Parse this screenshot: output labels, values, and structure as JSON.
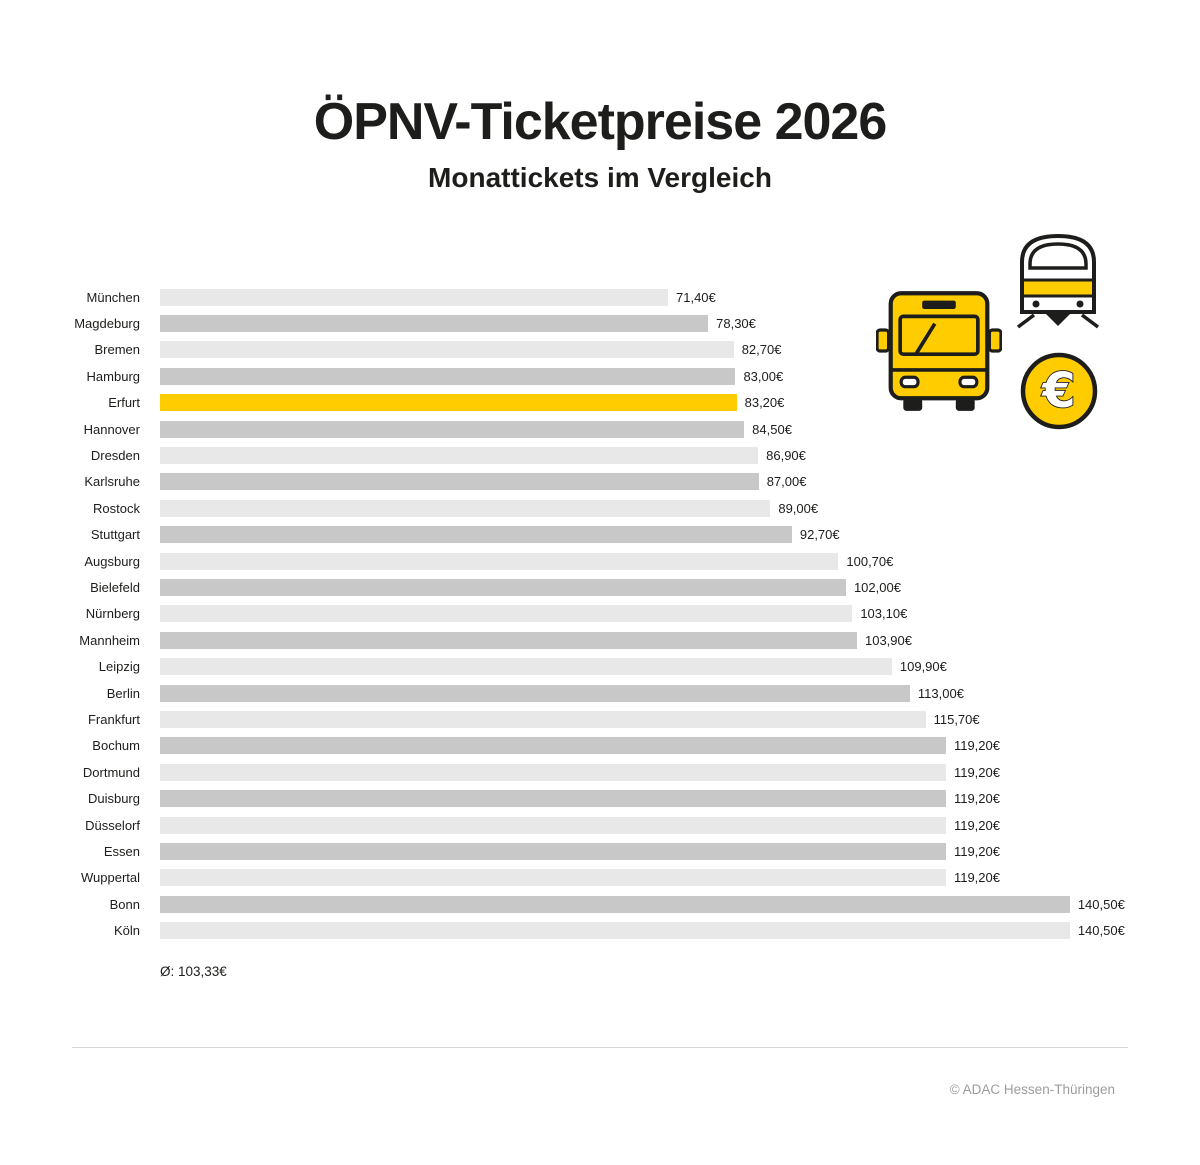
{
  "header": {
    "title": "ÖPNV-Ticketpreise 2026",
    "subtitle": "Monattickets im Vergleich"
  },
  "footer": {
    "credit": "© ADAC Hessen-Thüringen"
  },
  "colors": {
    "highlight": "#FFCC00",
    "bar_light": "#E9E8E8",
    "bar_dark": "#C9C8C8",
    "text": "#1D1D1B",
    "muted": "#9C9C9C"
  },
  "icons": [
    "bus-icon",
    "train-icon",
    "euro-coin-icon"
  ],
  "chart_data": {
    "type": "bar",
    "orientation": "horizontal",
    "title": "ÖPNV-Ticketpreise 2026",
    "subtitle": "Monattickets im Vergleich",
    "unit": "EUR/Monat",
    "grid": false,
    "legend": false,
    "xlim": [
      0,
      140.5
    ],
    "categories": [
      "München",
      "Magdeburg",
      "Bremen",
      "Hamburg",
      "Erfurt",
      "Hannover",
      "Dresden",
      "Karlsruhe",
      "Rostock",
      "Stuttgart",
      "Augsburg",
      "Bielefeld",
      "Nürnberg",
      "Mannheim",
      "Leipzig",
      "Berlin",
      "Frankfurt",
      "Bochum",
      "Dortmund",
      "Duisburg",
      "Düsselorf",
      "Essen",
      "Wuppertal",
      "Bonn",
      "Köln"
    ],
    "values": [
      71.4,
      78.3,
      82.7,
      83.0,
      83.2,
      84.5,
      86.9,
      87.0,
      89.0,
      92.7,
      100.7,
      102.0,
      103.1,
      103.9,
      109.9,
      113.0,
      115.7,
      119.2,
      119.2,
      119.2,
      119.2,
      119.2,
      119.2,
      140.5,
      140.5
    ],
    "value_labels": [
      "71,40€",
      "78,30€",
      "82,70€",
      "83,00€",
      "83,20€",
      "84,50€",
      "86,90€",
      "87,00€",
      "89,00€",
      "92,70€",
      "100,70€",
      "102,00€",
      "103,10€",
      "103,90€",
      "109,90€",
      "113,00€",
      "115,70€",
      "119,20€",
      "119,20€",
      "119,20€",
      "119,20€",
      "119,20€",
      "119,20€",
      "140,50€",
      "140,50€"
    ],
    "highlight_index": 4,
    "highlight_category": "Erfurt",
    "average_value": 103.33,
    "average_label": "Ø: 103,33€"
  }
}
